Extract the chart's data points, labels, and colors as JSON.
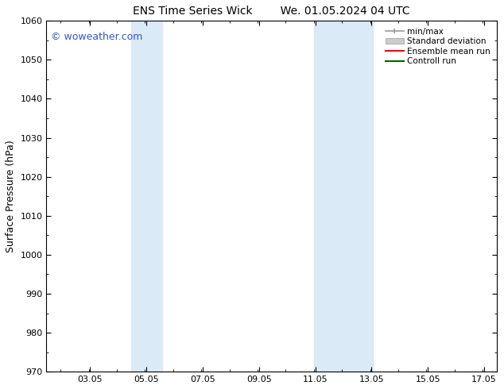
{
  "title": "ENS Time Series Wick        We. 01.05.2024 04 UTC",
  "ylabel": "Surface Pressure (hPa)",
  "ylim": [
    970,
    1060
  ],
  "yticks": [
    970,
    980,
    990,
    1000,
    1010,
    1020,
    1030,
    1040,
    1050,
    1060
  ],
  "xlim": [
    1.5,
    17.5
  ],
  "xticks": [
    3.05,
    5.05,
    7.05,
    9.05,
    11.05,
    13.05,
    15.05,
    17.05
  ],
  "xticklabels": [
    "03.05",
    "05.05",
    "07.05",
    "09.05",
    "11.05",
    "13.05",
    "15.05",
    "17.05"
  ],
  "watermark": "© woweather.com",
  "watermark_color": "#3355cc",
  "background_color": "#ffffff",
  "plot_bg_color": "#ffffff",
  "shaded_regions": [
    {
      "xmin": 4.5,
      "xmax": 5.6,
      "color": "#daeaf7"
    },
    {
      "xmin": 11.0,
      "xmax": 13.1,
      "color": "#daeaf7"
    }
  ],
  "legend_entries": [
    {
      "label": "min/max",
      "color": "#999999"
    },
    {
      "label": "Standard deviation",
      "color": "#cccccc"
    },
    {
      "label": "Ensemble mean run",
      "color": "#ff0000"
    },
    {
      "label": "Controll run",
      "color": "#006600"
    }
  ],
  "title_fontsize": 10,
  "tick_fontsize": 8,
  "label_fontsize": 9,
  "watermark_fontsize": 9
}
